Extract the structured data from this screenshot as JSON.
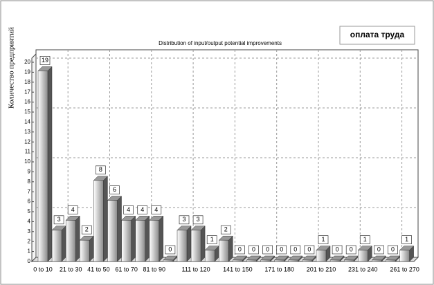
{
  "chart_data": {
    "type": "bar",
    "title": "Distribution of input/output potential improvements",
    "badge": "оплата труда",
    "y_label": "Количество предприятий",
    "categories": [
      "0 to 10",
      null,
      "21 to 30",
      null,
      "41 to 50",
      null,
      "61 to 70",
      null,
      "81 to 90",
      null,
      null,
      "111 to 120",
      null,
      null,
      "141 to 150",
      null,
      null,
      "171 to 180",
      null,
      null,
      "201 to 210",
      null,
      null,
      "231 to 240",
      null,
      null,
      "261 to 270"
    ],
    "values": [
      19,
      3,
      4,
      2,
      8,
      6,
      4,
      4,
      4,
      0,
      3,
      3,
      1,
      2,
      0,
      0,
      0,
      0,
      0,
      0,
      1,
      0,
      0,
      1,
      0,
      0,
      1
    ],
    "color": "#aaaaaa",
    "ylim": [
      0,
      20
    ],
    "yticks": [
      0,
      1,
      2,
      3,
      4,
      5,
      6,
      7,
      8,
      9,
      10,
      11,
      12,
      13,
      14,
      15,
      16,
      17,
      18,
      19,
      20
    ],
    "grid": true
  }
}
